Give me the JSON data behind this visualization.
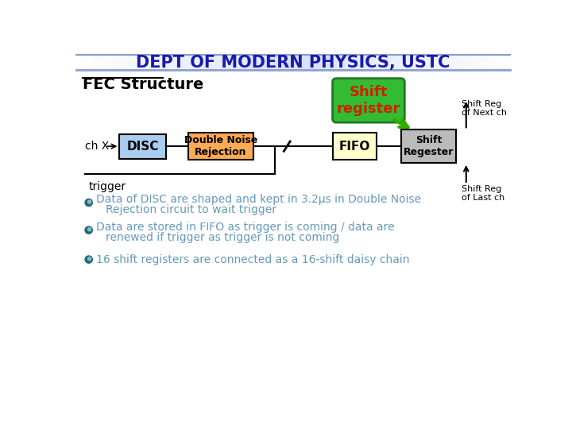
{
  "title": "DEPT OF MODERN PHYSICS, USTC",
  "title_color": "#1a1aaa",
  "fec_label": "FEC Structure",
  "chx_label": "ch X",
  "disc_label": "DISC",
  "dnr_label": "Double Noise\nRejection",
  "fifo_label": "FIFO",
  "shift_reg_label": "Shift\nRegester",
  "shift_register_bubble": "Shift\nregister",
  "shift_reg_next": "Shift Reg\nof Next ch",
  "shift_reg_last": "Shift Reg\nof Last ch",
  "trigger_label": "trigger",
  "bullet1a": "Data of DISC are shaped and kept in 3.2μs in Double Noise",
  "bullet1b": "Rejection circuit to wait trigger",
  "bullet2a": "Data are stored in FIFO as trigger is coming / data are",
  "bullet2b": "renewed if trigger as trigger is not coming",
  "bullet3": "16 shift registers are connected as a 16-shift daisy chain",
  "bullet_color": "#6699bb",
  "disc_box_color": "#aaccee",
  "dnr_box_color": "#ffaa55",
  "fifo_box_color": "#ffffcc",
  "shift_box_color": "#bbbbbb",
  "shift_bubble_color": "#33bb33",
  "bubble_text_color": "#cc2200",
  "arrow_color": "#33aa00",
  "line_color": "#000000",
  "bg_color": "#ffffff"
}
